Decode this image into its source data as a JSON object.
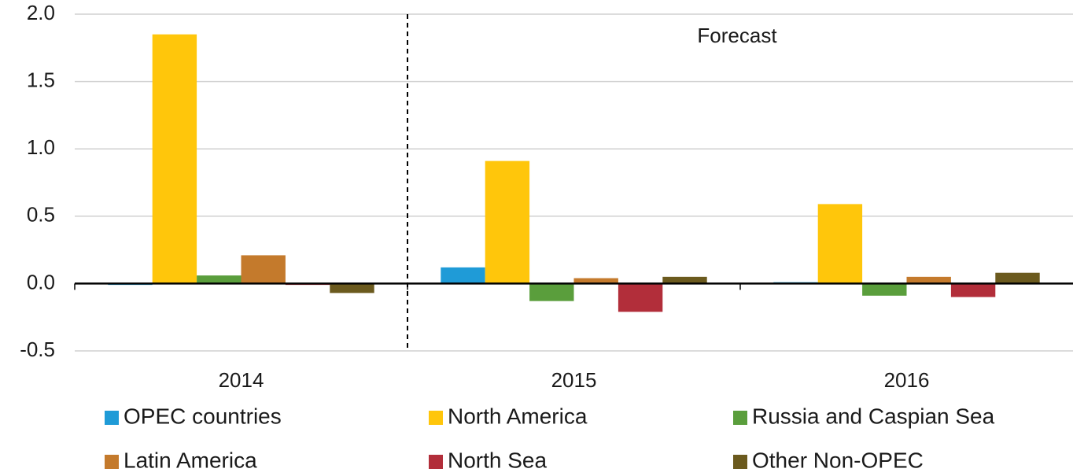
{
  "chart_data": {
    "type": "bar",
    "annotation": "Forecast",
    "categories": [
      "2014",
      "2015",
      "2016"
    ],
    "series": [
      {
        "name": "OPEC countries",
        "color": "#1f9bd7",
        "values": [
          -0.01,
          0.12,
          0.01
        ]
      },
      {
        "name": "North America",
        "color": "#ffc60b",
        "values": [
          1.85,
          0.91,
          0.59
        ]
      },
      {
        "name": "Russia and Caspian Sea",
        "color": "#5a9e3c",
        "values": [
          0.06,
          -0.13,
          -0.09
        ]
      },
      {
        "name": "Latin America",
        "color": "#c47a2c",
        "values": [
          0.21,
          0.04,
          0.05
        ]
      },
      {
        "name": "North Sea",
        "color": "#b22e3a",
        "values": [
          -0.01,
          -0.21,
          -0.1
        ]
      },
      {
        "name": "Other Non-OPEC",
        "color": "#6b5a1e",
        "values": [
          -0.07,
          0.05,
          0.08
        ]
      }
    ],
    "ylim": [
      -0.5,
      2.0
    ],
    "yticks": [
      {
        "value": -0.5,
        "label": "-0.5"
      },
      {
        "value": 0,
        "label": "0.0"
      },
      0.5,
      {
        "value": 1,
        "label": "1.0"
      },
      1.5,
      {
        "value": 2,
        "label": "2.0"
      }
    ],
    "grid": true
  }
}
